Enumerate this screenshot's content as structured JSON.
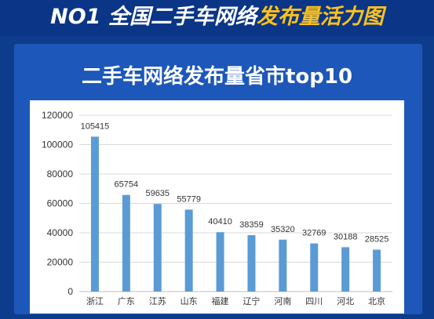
{
  "banner": {
    "part1": "NO1 全国二手车网络",
    "part2": "发布量活力图",
    "color_white": "#ffffff",
    "color_yellow": "#ffc21a"
  },
  "panel_title": "二手车网络发布量省市top10",
  "chart_data": {
    "type": "bar",
    "title": "二手车网络发布量省市top10",
    "xlabel": "",
    "ylabel": "",
    "categories": [
      "浙江",
      "广东",
      "江苏",
      "山东",
      "福建",
      "辽宁",
      "河南",
      "四川",
      "河北",
      "北京"
    ],
    "values": [
      105415,
      65754,
      59635,
      55779,
      40410,
      38359,
      35320,
      32769,
      30188,
      28525
    ],
    "data_labels": [
      "105415",
      "65754",
      "59635",
      "55779",
      "40410",
      "38359",
      "35320",
      "32769",
      "30188",
      "28525"
    ],
    "y_ticks": [
      0,
      20000,
      40000,
      60000,
      80000,
      100000,
      120000
    ],
    "y_tick_labels": [
      "0",
      "20000",
      "40000",
      "60000",
      "80000",
      "100000",
      "120000"
    ],
    "ylim": [
      0,
      120000
    ],
    "grid": true,
    "legend": "none",
    "bar_color": "#5b9bd5"
  }
}
